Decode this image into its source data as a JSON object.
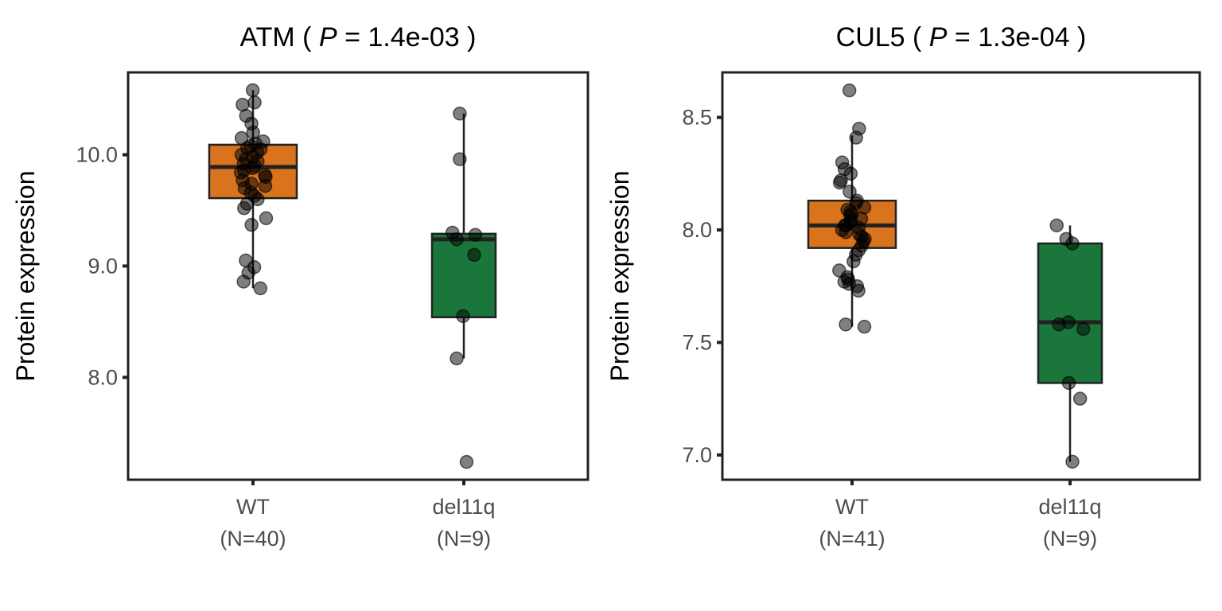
{
  "chart_data": [
    {
      "type": "box",
      "title": {
        "gene": "ATM",
        "p_label": "P",
        "p_value": "1.4e-03"
      },
      "ylabel": "Protein expression",
      "ylim": [
        7.08,
        10.74
      ],
      "yticks": [
        {
          "v": 8.0,
          "label": "8.0"
        },
        {
          "v": 9.0,
          "label": "9.0"
        },
        {
          "v": 10.0,
          "label": "10.0"
        }
      ],
      "groups": [
        {
          "name": "WT",
          "n_label": "(N=40)",
          "color": "#D9731E",
          "q1": 9.61,
          "median": 9.89,
          "q3": 10.09,
          "whisker_low": 8.8,
          "whisker_high": 10.58,
          "points": [
            10.58,
            10.47,
            10.45,
            10.35,
            10.28,
            10.2,
            10.15,
            10.12,
            10.1,
            10.08,
            10.06,
            10.05,
            10.02,
            10.0,
            9.98,
            9.96,
            9.94,
            9.92,
            9.9,
            9.88,
            9.86,
            9.84,
            9.82,
            9.8,
            9.77,
            9.74,
            9.72,
            9.7,
            9.66,
            9.63,
            9.6,
            9.56,
            9.52,
            9.43,
            9.37,
            9.05,
            8.99,
            8.94,
            8.86,
            8.8
          ]
        },
        {
          "name": "del11q",
          "n_label": "(N=9)",
          "color": "#1B763B",
          "q1": 8.54,
          "median": 9.24,
          "q3": 9.29,
          "whisker_low": 8.17,
          "whisker_high": 10.37,
          "points": [
            10.37,
            9.96,
            9.3,
            9.28,
            9.24,
            9.1,
            8.55,
            8.17,
            7.24
          ]
        }
      ]
    },
    {
      "type": "box",
      "title": {
        "gene": "CUL5",
        "p_label": "P",
        "p_value": "1.3e-04"
      },
      "ylabel": "Protein expression",
      "ylim": [
        6.89,
        8.7
      ],
      "yticks": [
        {
          "v": 7.0,
          "label": "7.0"
        },
        {
          "v": 7.5,
          "label": "7.5"
        },
        {
          "v": 8.0,
          "label": "8.0"
        },
        {
          "v": 8.5,
          "label": "8.5"
        }
      ],
      "groups": [
        {
          "name": "WT",
          "n_label": "(N=41)",
          "color": "#D9731E",
          "q1": 7.92,
          "median": 8.02,
          "q3": 8.13,
          "whisker_low": 7.57,
          "whisker_high": 8.42,
          "points": [
            8.62,
            8.45,
            8.41,
            8.3,
            8.27,
            8.25,
            8.22,
            8.21,
            8.17,
            8.13,
            8.12,
            8.1,
            8.09,
            8.08,
            8.07,
            8.06,
            8.05,
            8.04,
            8.03,
            8.02,
            8.02,
            8.01,
            8.0,
            7.99,
            7.98,
            7.97,
            7.96,
            7.95,
            7.93,
            7.91,
            7.89,
            7.86,
            7.82,
            7.79,
            7.78,
            7.77,
            7.76,
            7.75,
            7.73,
            7.58,
            7.57
          ]
        },
        {
          "name": "del11q",
          "n_label": "(N=9)",
          "color": "#1B763B",
          "q1": 7.32,
          "median": 7.59,
          "q3": 7.94,
          "whisker_low": 6.97,
          "whisker_high": 8.02,
          "points": [
            8.02,
            7.96,
            7.94,
            7.59,
            7.58,
            7.56,
            7.32,
            7.25,
            6.97
          ]
        }
      ]
    }
  ]
}
